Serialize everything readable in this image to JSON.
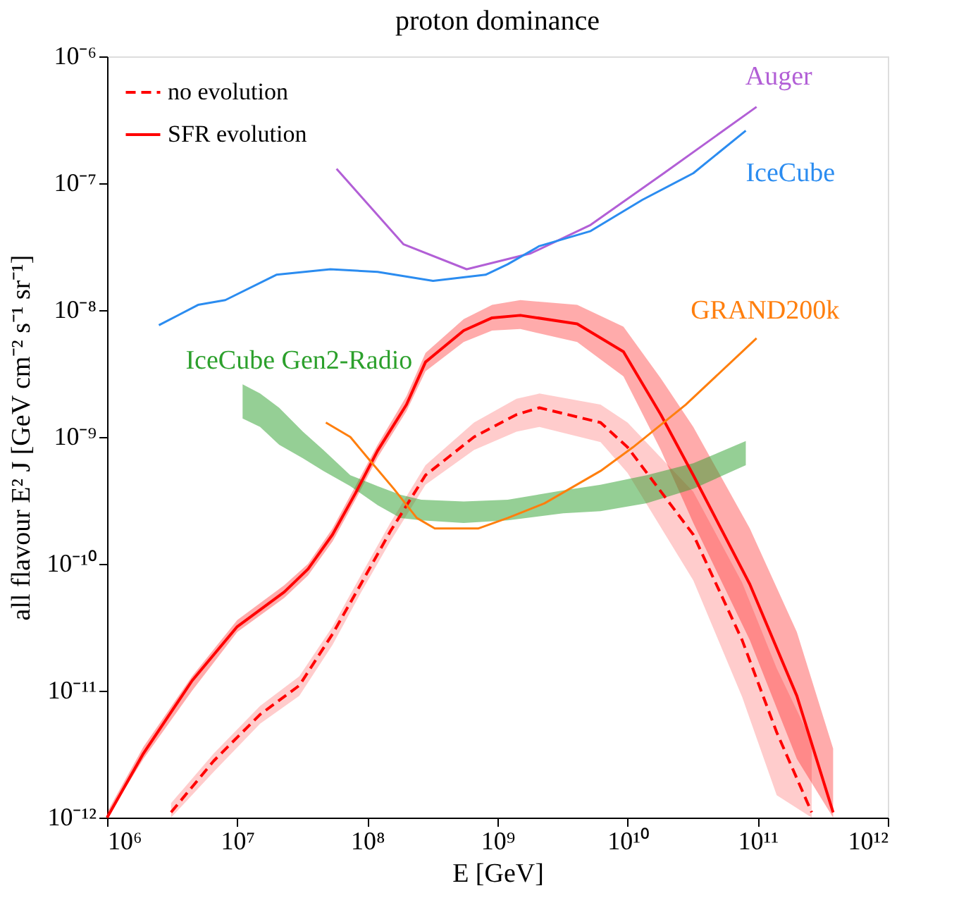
{
  "chart_data": {
    "type": "line",
    "title": "proton dominance",
    "xlabel": "E [GeV]",
    "ylabel": "all flavour E² J [GeV cm⁻² s⁻¹ sr⁻¹]",
    "log": "xy",
    "legend": "top left",
    "grid": false,
    "xlim": [
      1000000.0,
      1000000000000.0
    ],
    "xticks": [
      {
        "value": 1000000.0,
        "label": "10⁶"
      },
      {
        "value": 10000000.0,
        "label": "10⁷"
      },
      {
        "value": 100000000.0,
        "label": "10⁸"
      },
      {
        "value": 1000000000.0,
        "label": "10⁹"
      },
      {
        "value": 10000000000.0,
        "label": "10¹⁰"
      },
      {
        "value": 100000000000.0,
        "label": "10¹¹"
      },
      {
        "value": 1000000000000.0,
        "label": "10¹²"
      }
    ],
    "ylim": [
      1e-12,
      1e-06
    ],
    "yticks": [
      {
        "value": 1e-12,
        "label": "10⁻¹²"
      },
      {
        "value": 1e-11,
        "label": "10⁻¹¹"
      },
      {
        "value": 1e-10,
        "label": "10⁻¹⁰"
      },
      {
        "value": 1e-09,
        "label": "10⁻⁹"
      },
      {
        "value": 1e-08,
        "label": "10⁻⁸"
      },
      {
        "value": 1e-07,
        "label": "10⁻⁷"
      },
      {
        "value": 1e-06,
        "label": "10⁻⁶"
      }
    ],
    "series": [
      {
        "name": "no evolution",
        "line_style": "dashed",
        "color": "#ff0000",
        "x": [
          3100000.0,
          6600000.0,
          15000000.0,
          30000000.0,
          54000000.0,
          89000000.0,
          150000000.0,
          280000000.0,
          660000000.0,
          1400000000.0,
          2100000000.0,
          6200000000.0,
          10000000000.0,
          32000000000.0,
          76000000000.0,
          140000000000.0,
          260000000000.0
        ],
        "values": [
          1.1e-12,
          2.8e-12,
          6.5e-12,
          1.1e-11,
          2.8e-11,
          6.9e-11,
          1.8e-10,
          5e-10,
          1e-09,
          1.5e-09,
          1.7e-09,
          1.3e-09,
          8.3e-10,
          1.7e-10,
          2.5e-11,
          4.7e-12,
          1.1e-12
        ],
        "lower": [
          1e-12,
          2.3e-12,
          5.5e-12,
          9.1e-12,
          2.3e-11,
          5.9e-11,
          1.5e-10,
          4.2e-10,
          7.9e-10,
          1.1e-09,
          1.2e-09,
          9.1e-10,
          5.2e-10,
          7.4e-11,
          8.9e-12,
          1.5e-12,
          1e-12
        ],
        "upper": [
          1.3e-12,
          3.2e-12,
          7.6e-12,
          1.3e-11,
          3.2e-11,
          8.1e-11,
          2.1e-10,
          6e-10,
          1.3e-09,
          2e-09,
          2.2e-09,
          1.8e-09,
          1.3e-09,
          3.7e-10,
          7.1e-11,
          1.5e-11,
          4e-12
        ]
      },
      {
        "name": "SFR evolution",
        "line_style": "solid",
        "color": "#ff0000",
        "x": [
          1000000.0,
          1900000.0,
          4500000.0,
          10000000.0,
          23000000.0,
          35000000.0,
          54000000.0,
          81000000.0,
          120000000.0,
          200000000.0,
          280000000.0,
          550000000.0,
          910000000.0,
          1500000000.0,
          4100000000.0,
          9300000000.0,
          18000000000.0,
          32000000000.0,
          87000000000.0,
          200000000000.0,
          380000000000.0
        ],
        "values": [
          1e-12,
          3.2e-12,
          1.2e-11,
          3.2e-11,
          6e-11,
          9.1e-11,
          1.7e-10,
          3.6e-10,
          7.8e-10,
          1.8e-09,
          3.9e-09,
          6.9e-09,
          8.7e-09,
          9.1e-09,
          7.8e-09,
          4.7e-09,
          1.5e-09,
          5e-10,
          6.9e-11,
          9.1e-12,
          1.1e-12
        ],
        "lower": [
          1e-12,
          2.9e-12,
          1e-11,
          2.9e-11,
          5.4e-11,
          8.1e-11,
          1.5e-10,
          3.2e-10,
          6.9e-10,
          1.6e-09,
          3.3e-09,
          5.6e-09,
          6.9e-09,
          7.1e-09,
          5.6e-09,
          3e-09,
          7.9e-10,
          2.1e-10,
          2.5e-11,
          2.9e-12,
          1e-12
        ],
        "upper": [
          1.1e-12,
          3.6e-12,
          1.3e-11,
          3.6e-11,
          6.8e-11,
          1e-10,
          1.9e-10,
          4.1e-10,
          8.7e-10,
          2.1e-09,
          4.6e-09,
          8.5e-09,
          1.1e-08,
          1.2e-08,
          1.1e-08,
          7.4e-09,
          2.9e-09,
          1.2e-09,
          1.9e-10,
          2.9e-11,
          3.5e-12
        ]
      },
      {
        "name": "Auger",
        "line_style": "solid",
        "color": "#b25fd6",
        "x": [
          58000000.0,
          190000000.0,
          580000000.0,
          1800000000.0,
          5200000000.0,
          19000000000.0,
          98000000000.0
        ],
        "values": [
          1.3e-07,
          3.3e-08,
          2.1e-08,
          2.8e-08,
          4.7e-08,
          1.2e-07,
          4e-07
        ]
      },
      {
        "name": "IceCube",
        "line_style": "solid",
        "color": "#2b8cf0",
        "x": [
          2500000.0,
          5000000.0,
          8100000.0,
          20000000.0,
          52000000.0,
          120000000.0,
          320000000.0,
          810000000.0,
          1200000000.0,
          2100000000.0,
          5200000000.0,
          13000000000.0,
          32000000000.0,
          81000000000.0
        ],
        "values": [
          7.6e-09,
          1.1e-08,
          1.2e-08,
          1.9e-08,
          2.1e-08,
          2e-08,
          1.7e-08,
          1.9e-08,
          2.3e-08,
          3.2e-08,
          4.2e-08,
          7.4e-08,
          1.2e-07,
          2.6e-07
        ]
      },
      {
        "name": "GRAND200k",
        "line_style": "solid",
        "color": "#ff7f0e",
        "x": [
          48000000.0,
          74000000.0,
          100000000.0,
          160000000.0,
          240000000.0,
          330000000.0,
          710000000.0,
          1200000000.0,
          2300000000.0,
          6200000000.0,
          11000000000.0,
          28000000000.0,
          98000000000.0
        ],
        "values": [
          1.3e-09,
          1e-09,
          6.9e-10,
          3.9e-10,
          2.3e-10,
          1.9e-10,
          1.9e-10,
          2.3e-10,
          3e-10,
          5.4e-10,
          8.3e-10,
          1.8e-09,
          6e-09
        ]
      },
      {
        "name": "IceCube Gen2-Radio",
        "type": "area",
        "color": "#2ca02c",
        "x": [
          11000000.0,
          15000000.0,
          21000000.0,
          32000000.0,
          46000000.0,
          74000000.0,
          120000000.0,
          180000000.0,
          260000000.0,
          550000000.0,
          1200000000.0,
          3200000000.0,
          6200000000.0,
          14000000000.0,
          32000000000.0,
          81000000000.0
        ],
        "values": [
          null,
          null,
          null,
          null,
          null,
          null,
          null,
          null,
          null,
          null,
          null,
          null,
          null,
          null,
          null,
          null
        ],
        "upper": [
          2.6e-09,
          2.2e-09,
          1.7e-09,
          1.1e-09,
          7.9e-10,
          5e-10,
          4.1e-10,
          3.5e-10,
          3.2e-10,
          3.1e-10,
          3.2e-10,
          3.8e-10,
          4.2e-10,
          5e-10,
          6.2e-10,
          9.3e-10
        ],
        "lower": [
          1.4e-09,
          1.2e-09,
          8.7e-10,
          6.8e-10,
          5.4e-10,
          4.1e-10,
          2.9e-10,
          2.3e-10,
          2.2e-10,
          2.1e-10,
          2.2e-10,
          2.5e-10,
          2.6e-10,
          3e-10,
          3.9e-10,
          6e-10
        ]
      }
    ]
  }
}
